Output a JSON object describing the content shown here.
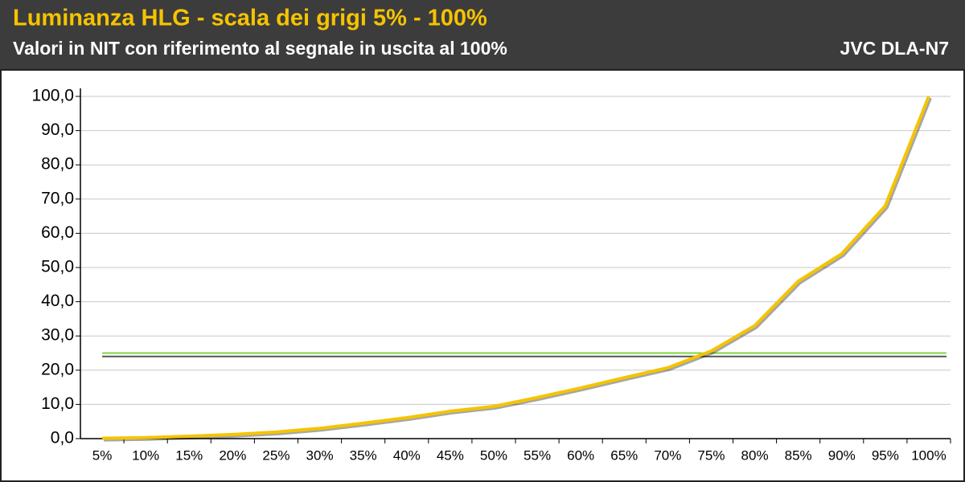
{
  "chart_data": {
    "type": "line",
    "title": "Luminanza HLG - scala dei grigi 5% - 100%",
    "subtitle": "Valori in NIT con riferimento al segnale in uscita al 100%",
    "device": "JVC DLA-N7",
    "categories": [
      "5%",
      "10%",
      "15%",
      "20%",
      "25%",
      "30%",
      "35%",
      "40%",
      "45%",
      "50%",
      "55%",
      "60%",
      "65%",
      "70%",
      "75%",
      "80%",
      "85%",
      "90%",
      "95%",
      "100%"
    ],
    "values": [
      0.1,
      0.3,
      0.7,
      1.2,
      1.9,
      3.0,
      4.5,
      6.1,
      8.0,
      9.4,
      12.0,
      14.8,
      17.8,
      20.7,
      25.6,
      33.0,
      46.0,
      54.0,
      68.0,
      100.0
    ],
    "color": "#f5c400",
    "reference_lines": [
      {
        "value": 25,
        "color": "#7ed640"
      },
      {
        "value": 24,
        "color": "#555555"
      }
    ],
    "ylim": [
      0,
      100
    ],
    "yticks": [
      {
        "value": 0,
        "label": "0,0"
      },
      {
        "value": 10,
        "label": "10,0"
      },
      {
        "value": 20,
        "label": "20,0"
      },
      {
        "value": 30,
        "label": "30,0"
      },
      {
        "value": 40,
        "label": "40,0"
      },
      {
        "value": 50,
        "label": "50,0"
      },
      {
        "value": 60,
        "label": "60,0"
      },
      {
        "value": 70,
        "label": "70,0"
      },
      {
        "value": 80,
        "label": "80,0"
      },
      {
        "value": 90,
        "label": "90,0"
      },
      {
        "value": 100,
        "label": "100,0"
      }
    ],
    "grid": true
  }
}
